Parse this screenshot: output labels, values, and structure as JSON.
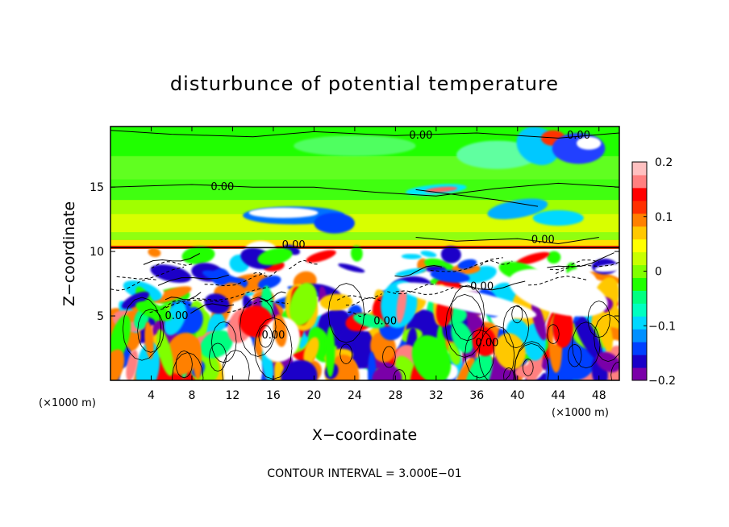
{
  "chart_data": {
    "type": "heatmap",
    "title": "disturbunce of potential temperature",
    "xlabel": "X−coordinate",
    "ylabel": "Z−coordinate",
    "x_unit": "(×1000 m)",
    "x_unit_right": "(×1000 m)",
    "xlim": [
      0,
      50
    ],
    "ylim": [
      0,
      19.7
    ],
    "x_ticks": [
      4,
      8,
      12,
      16,
      20,
      24,
      28,
      32,
      36,
      40,
      44,
      48
    ],
    "x_tick_labels": [
      "4",
      "8",
      "12",
      "16",
      "20",
      "24",
      "28",
      "32",
      "36",
      "40",
      "44",
      "48"
    ],
    "y_ticks": [
      5,
      10,
      15
    ],
    "y_tick_labels": [
      "5",
      "10",
      "15"
    ],
    "colorbar": {
      "min": -0.2,
      "max": 0.2,
      "ticks": [
        0.2,
        0.1,
        0,
        -0.1,
        -0.2
      ],
      "tick_labels": [
        "0.2",
        "0.1",
        "0",
        "−0.1",
        "−0.2"
      ],
      "colors": [
        "#7a00a8",
        "#1a00c8",
        "#0040ff",
        "#0090ff",
        "#00d8ff",
        "#00ffc0",
        "#00ff80",
        "#20ff00",
        "#80ff00",
        "#c8ff00",
        "#ffff00",
        "#ffc800",
        "#ff8000",
        "#ff3000",
        "#ff0000",
        "#ff8080",
        "#ffc0c0"
      ]
    },
    "contour_interval_text": "CONTOUR INTERVAL = 3.000E−01",
    "contour_labels": [
      {
        "text": "0.00",
        "x": 30.5,
        "z": 19.0
      },
      {
        "text": "0.00",
        "x": 46.0,
        "z": 19.0
      },
      {
        "text": "0.00",
        "x": 11.0,
        "z": 15.0
      },
      {
        "text": "0.00",
        "x": 18.0,
        "z": 10.5
      },
      {
        "text": "0.00",
        "x": 42.5,
        "z": 10.9
      },
      {
        "text": "0.00",
        "x": 36.5,
        "z": 7.3
      },
      {
        "text": "0.00",
        "x": 6.5,
        "z": 5.0
      },
      {
        "text": "0.00",
        "x": 16.0,
        "z": 3.5
      },
      {
        "text": "0.00",
        "x": 27.0,
        "z": 4.6
      },
      {
        "text": "0.00",
        "x": 37.0,
        "z": 2.9
      }
    ]
  }
}
